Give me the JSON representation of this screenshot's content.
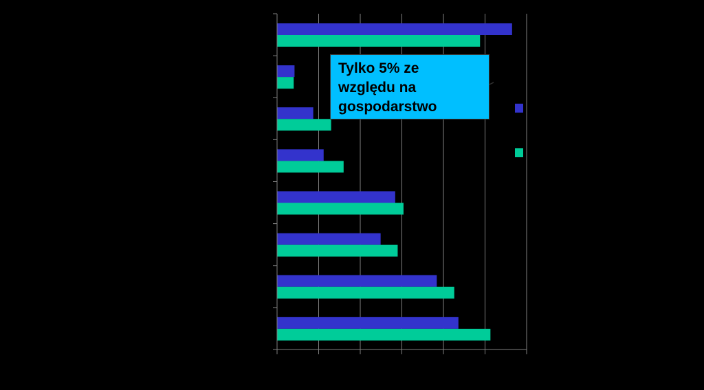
{
  "colors": {
    "background": "#000000",
    "series_1": "#3333CC",
    "series_2": "#00CC99",
    "callout_fill": "#00BFFF",
    "axis": "#808080"
  },
  "chart_data": {
    "type": "bar",
    "orientation": "horizontal",
    "categories": [
      "",
      "",
      "",
      "",
      "",
      "",
      "",
      ""
    ],
    "series": [
      {
        "values": [
          56.5,
          4.2,
          8.7,
          11.2,
          28.4,
          24.9,
          38.4,
          43.6
        ]
      },
      {
        "values": [
          48.8,
          4.0,
          13.0,
          16.0,
          30.4,
          29.0,
          42.6,
          51.3
        ]
      }
    ],
    "xlim": [
      0,
      60
    ],
    "x_gridlines": [
      10,
      20,
      30,
      40,
      50,
      60
    ],
    "grid": true,
    "legend": "right"
  },
  "annotation": {
    "lines": [
      "Tylko 5% ze",
      "względu na",
      "gospodarstwo"
    ]
  }
}
